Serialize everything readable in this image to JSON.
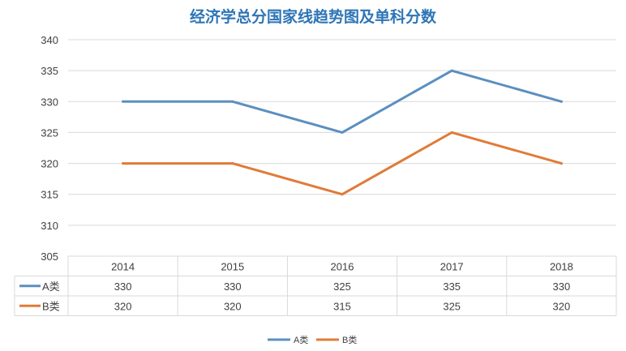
{
  "chart_data": {
    "type": "line",
    "title": "经济学总分国家线趋势图及单科分数",
    "categories": [
      "2014",
      "2015",
      "2016",
      "2017",
      "2018"
    ],
    "series": [
      {
        "name": "A类",
        "values": [
          330,
          330,
          325,
          335,
          330
        ],
        "color": "#5b8fc0"
      },
      {
        "name": "B类",
        "values": [
          320,
          320,
          315,
          325,
          320
        ],
        "color": "#e07b39"
      }
    ],
    "ylim": [
      305,
      340
    ],
    "yticks": [
      305,
      310,
      315,
      320,
      325,
      330,
      335,
      340
    ],
    "grid": true,
    "data_table": true,
    "legend": "bottom"
  },
  "colors": {
    "title": "#2e75b6",
    "grid": "#d9d9d9",
    "axis_text": "#404040"
  }
}
